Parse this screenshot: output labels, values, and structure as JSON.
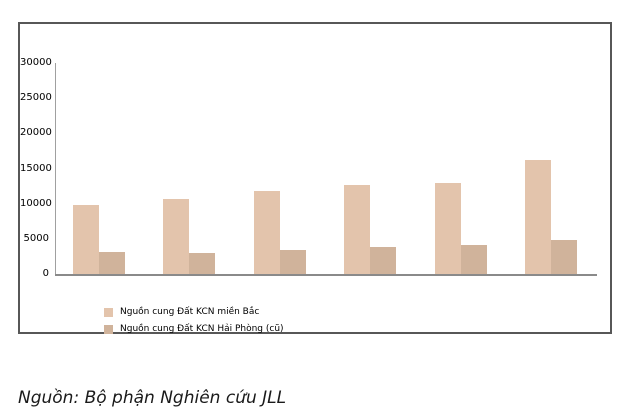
{
  "caption": "Nguồn: Bộ phận Nghiên cứu JLL",
  "legend": {
    "items": [
      {
        "label": "Nguồn cung Đất KCN miền Bắc",
        "color": "#e3c4ac"
      },
      {
        "label": "Nguồn cung Đất KCN Hải Phòng (cũ)",
        "color": "#d0b39b"
      }
    ]
  },
  "chart_data": {
    "type": "bar",
    "title": "",
    "xlabel": "",
    "ylabel": "",
    "categories": [
      "",
      "",
      "",
      "",
      "",
      ""
    ],
    "series": [
      {
        "name": "Nguồn cung Đất KCN miền Bắc",
        "color": "#e3c4ac",
        "values": [
          9800,
          10600,
          11800,
          12600,
          12900,
          16200
        ]
      },
      {
        "name": "Nguồn cung Đất KCN Hải Phòng (cũ)",
        "color": "#d0b39b",
        "values": [
          3100,
          3000,
          3400,
          3900,
          4100,
          4900
        ]
      }
    ],
    "ylim": [
      0,
      30000
    ],
    "yticks": [
      30000,
      25000,
      20000,
      15000,
      10000,
      5000,
      0
    ],
    "grid": false,
    "x_axis_labels_visible": false,
    "legend_position": "bottom-left-inside"
  }
}
